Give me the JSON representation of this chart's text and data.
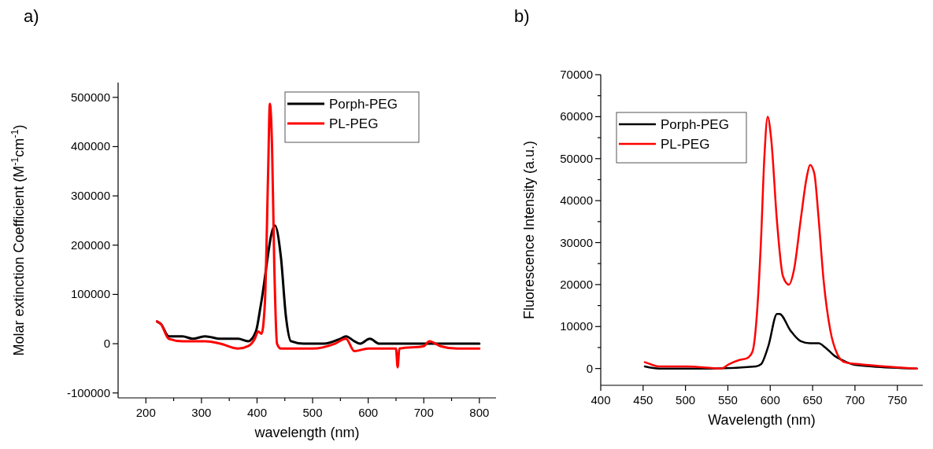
{
  "chart_data": [
    {
      "type": "line",
      "xlabel": "wavelength (nm)",
      "ylabel": "Molar extinction Coefficient (M$^{-1}$cm$^{-1}$)",
      "annotations": [
        "a)"
      ],
      "legend": "top right",
      "xlim": [
        150,
        830
      ],
      "ylim": [
        -110000,
        530000
      ],
      "xticks": [
        200,
        {
          "value": 250,
          "label": null
        },
        300,
        {
          "value": 350,
          "label": null
        },
        400,
        {
          "value": 450,
          "label": null
        },
        500,
        {
          "value": 550,
          "label": null
        },
        600,
        {
          "value": 650,
          "label": null
        },
        700,
        {
          "value": 750,
          "label": null
        },
        800
      ],
      "yticks": [
        -100000,
        0,
        100000,
        200000,
        300000,
        400000,
        500000
      ],
      "series": [
        {
          "name": "Porph-PEG",
          "color": "#000000",
          "x": [
            220,
            227,
            241,
            266,
            284,
            307,
            334,
            366,
            384,
            398,
            407,
            432,
            443,
            452,
            461,
            484,
            520,
            550,
            560,
            575,
            585,
            603,
            620,
            700,
            800
          ],
          "values": [
            45000,
            40000,
            15000,
            15000,
            10000,
            15000,
            10000,
            10000,
            5000,
            25000,
            80000,
            240000,
            175000,
            55000,
            5000,
            0,
            0,
            10000,
            15000,
            5000,
            0,
            10000,
            0,
            0,
            0
          ]
        },
        {
          "name": "PL-PEG",
          "color": "#ff0000",
          "x": [
            220,
            227,
            241,
            266,
            284,
            307,
            334,
            366,
            384,
            396,
            402,
            408,
            414,
            420,
            423,
            427,
            431,
            436,
            443,
            500,
            540,
            560,
            575,
            600,
            650,
            653,
            656,
            700,
            710,
            730,
            760,
            800
          ],
          "values": [
            45000,
            40000,
            10000,
            5000,
            5000,
            5000,
            0,
            -10000,
            -5000,
            10000,
            25000,
            20000,
            80000,
            350000,
            487000,
            400000,
            160000,
            0,
            -10000,
            -10000,
            0,
            10000,
            -15000,
            -10000,
            -10000,
            -48000,
            -10000,
            -5000,
            5000,
            -5000,
            -10000,
            -10000
          ]
        }
      ]
    },
    {
      "type": "line",
      "xlabel": "Wavelength (nm)",
      "ylabel": "Fluorescence Intensity (a.u.)",
      "annotations": [
        "b)"
      ],
      "legend": "top left",
      "xlim": [
        400,
        780
      ],
      "ylim": [
        -4000,
        70000
      ],
      "xticks": [
        400,
        450,
        500,
        550,
        600,
        650,
        700,
        750
      ],
      "yticks": [
        0,
        {
          "value": 5000,
          "label": null
        },
        10000,
        {
          "value": 15000,
          "label": null
        },
        20000,
        {
          "value": 25000,
          "label": null
        },
        30000,
        {
          "value": 35000,
          "label": null
        },
        40000,
        {
          "value": 45000,
          "label": null
        },
        50000,
        {
          "value": 55000,
          "label": null
        },
        60000,
        {
          "value": 65000,
          "label": null
        },
        70000
      ],
      "series": [
        {
          "name": "Porph-PEG",
          "color": "#000000",
          "x": [
            452,
            469,
            530,
            583,
            589,
            598,
            608,
            611,
            624,
            636,
            647,
            657,
            665,
            676,
            685,
            697,
            720,
            773
          ],
          "values": [
            500,
            0,
            0,
            500,
            1000,
            5500,
            13000,
            13000,
            9000,
            6500,
            6000,
            6000,
            5000,
            3000,
            2000,
            1000,
            500,
            0
          ]
        },
        {
          "name": "PL-PEG",
          "color": "#ff0000",
          "x": [
            452,
            459,
            468,
            501,
            542,
            551,
            563,
            573,
            579,
            585,
            589,
            593,
            597,
            601,
            608,
            615,
            622,
            628,
            636,
            643,
            647,
            652,
            657,
            663,
            671,
            679,
            688,
            706,
            735,
            773
          ],
          "values": [
            1500,
            1000,
            500,
            500,
            0,
            1000,
            2000,
            2500,
            4000,
            15000,
            30000,
            50000,
            60000,
            55000,
            35000,
            22000,
            20000,
            23500,
            35500,
            45500,
            48500,
            46500,
            36000,
            21000,
            9000,
            3500,
            1500,
            1000,
            500,
            0
          ]
        }
      ]
    }
  ]
}
